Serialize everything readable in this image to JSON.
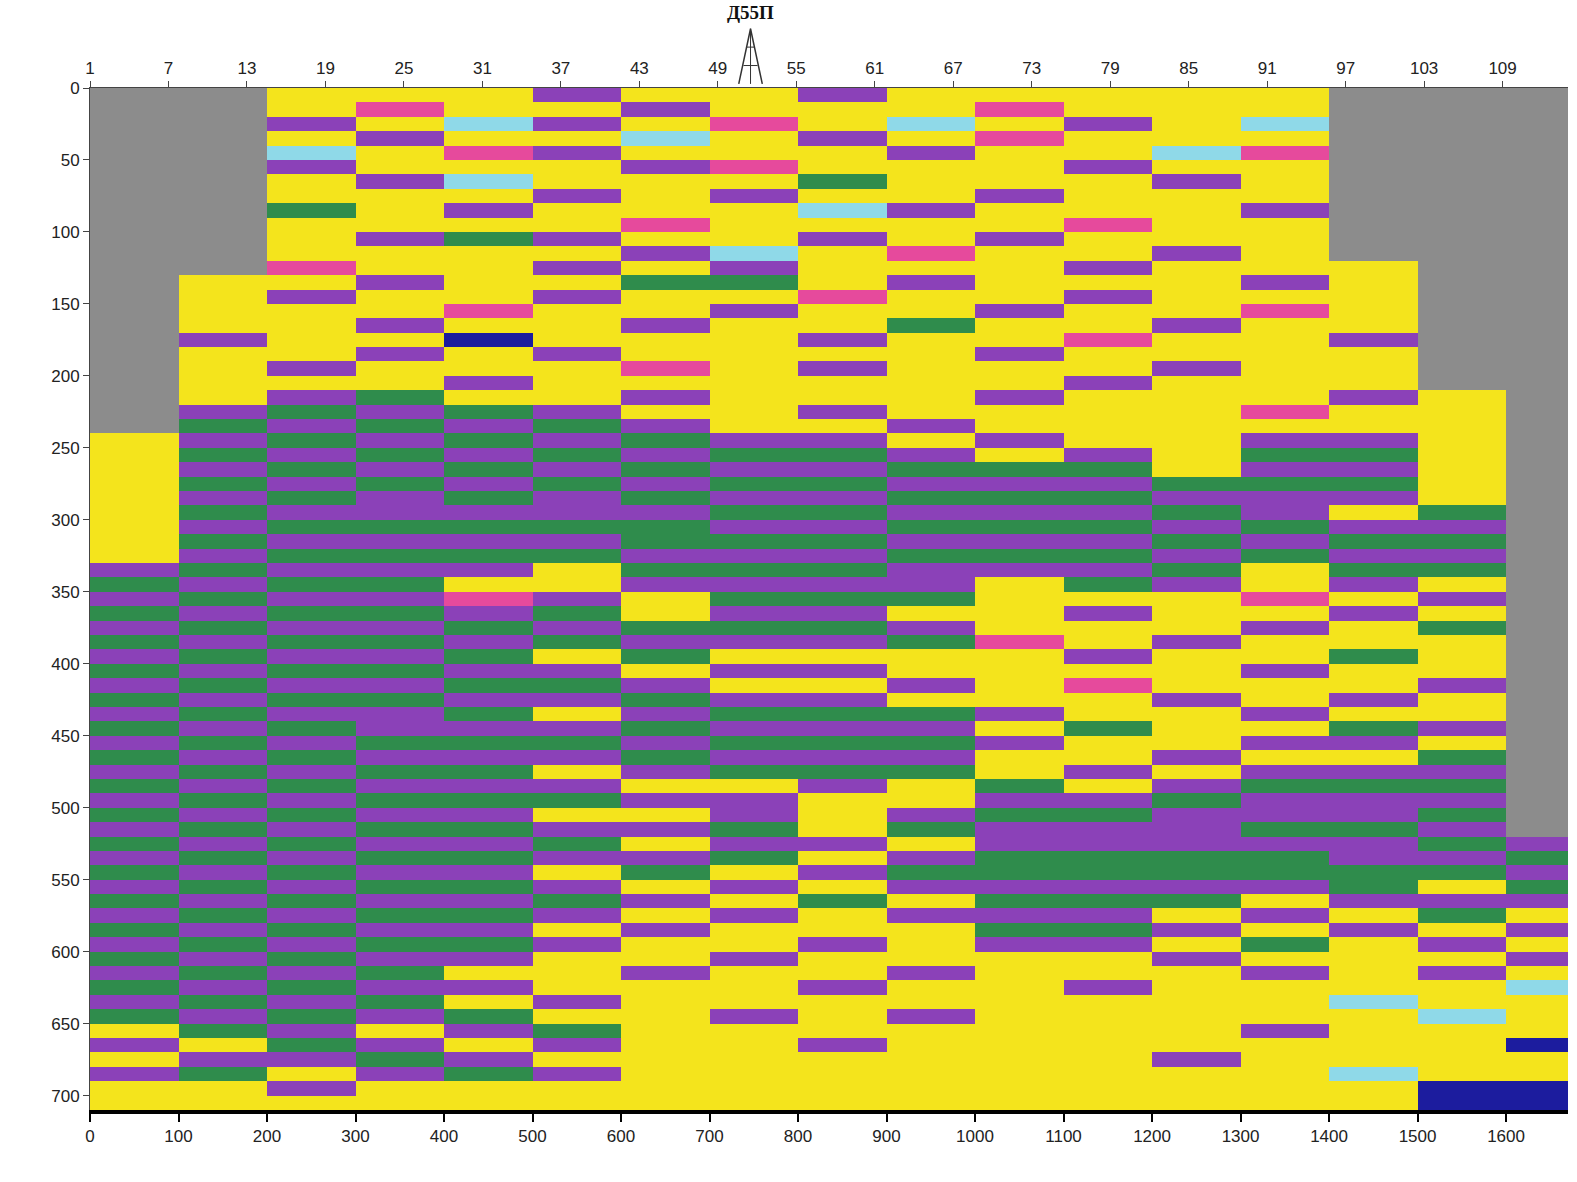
{
  "chart_data": {
    "type": "heatmap",
    "annotations": [
      {
        "text": "Д55П",
        "x": 51.5,
        "axis": "x2"
      }
    ],
    "xlim": [
      0,
      1670
    ],
    "xticks": [
      0,
      100,
      200,
      300,
      400,
      500,
      600,
      700,
      800,
      900,
      1000,
      1100,
      1200,
      1300,
      1400,
      1500,
      1600
    ],
    "x2lim": [
      1,
      114
    ],
    "x2ticks": [
      1,
      7,
      13,
      19,
      25,
      31,
      37,
      43,
      49,
      55,
      61,
      67,
      73,
      79,
      85,
      91,
      97,
      103,
      109
    ],
    "ylim": [
      710,
      0
    ],
    "yticks": [
      0,
      50,
      100,
      150,
      200,
      250,
      300,
      350,
      400,
      450,
      500,
      550,
      600,
      650,
      700
    ],
    "zlim": [
      1,
      6
    ],
    "x": [
      50,
      150,
      250,
      350,
      450,
      550,
      650,
      750,
      850,
      950,
      1050,
      1150,
      1250,
      1350,
      1450,
      1550,
      1650
    ],
    "y": [
      5,
      15,
      25,
      35,
      45,
      55,
      65,
      75,
      85,
      95,
      105,
      115,
      125,
      135,
      145,
      155,
      165,
      175,
      185,
      195,
      205,
      215,
      225,
      235,
      245,
      255,
      265,
      275,
      285,
      295,
      305,
      315,
      325,
      335,
      345,
      355,
      365,
      375,
      385,
      395,
      405,
      415,
      425,
      435,
      445,
      455,
      465,
      475,
      485,
      495,
      505,
      515,
      525,
      535,
      545,
      555,
      565,
      575,
      585,
      595,
      605,
      615,
      625,
      635,
      645,
      655,
      665,
      675,
      685,
      695,
      705
    ],
    "z": [
      [
        null,
        null,
        1,
        1,
        1,
        5,
        1,
        1,
        5,
        1,
        1,
        1,
        1,
        1,
        null,
        null,
        null
      ],
      [
        null,
        null,
        1,
        4,
        1,
        1,
        5,
        1,
        1,
        1,
        4,
        1,
        1,
        1,
        null,
        null,
        null
      ],
      [
        null,
        null,
        5,
        1,
        2,
        5,
        1,
        4,
        1,
        2,
        1,
        5,
        1,
        2,
        null,
        null,
        null
      ],
      [
        null,
        null,
        1,
        5,
        1,
        1,
        2,
        1,
        5,
        1,
        4,
        1,
        1,
        1,
        null,
        null,
        null
      ],
      [
        null,
        null,
        2,
        1,
        4,
        5,
        1,
        1,
        1,
        5,
        1,
        1,
        2,
        4,
        null,
        null,
        null
      ],
      [
        null,
        null,
        5,
        1,
        1,
        1,
        5,
        4,
        1,
        1,
        1,
        5,
        1,
        1,
        null,
        null,
        null
      ],
      [
        null,
        null,
        1,
        5,
        2,
        1,
        1,
        1,
        6,
        1,
        1,
        1,
        5,
        1,
        null,
        null,
        null
      ],
      [
        null,
        null,
        1,
        1,
        1,
        5,
        1,
        5,
        1,
        1,
        5,
        1,
        1,
        1,
        null,
        null,
        null
      ],
      [
        null,
        null,
        6,
        1,
        5,
        1,
        1,
        1,
        2,
        5,
        1,
        1,
        1,
        5,
        null,
        null,
        null
      ],
      [
        null,
        null,
        1,
        1,
        1,
        1,
        4,
        1,
        1,
        1,
        1,
        4,
        1,
        1,
        null,
        null,
        null
      ],
      [
        null,
        null,
        1,
        5,
        6,
        5,
        1,
        1,
        5,
        1,
        5,
        1,
        1,
        1,
        null,
        null,
        null
      ],
      [
        null,
        null,
        1,
        1,
        1,
        1,
        5,
        2,
        1,
        4,
        1,
        1,
        5,
        1,
        null,
        null,
        null
      ],
      [
        null,
        null,
        4,
        1,
        1,
        5,
        1,
        5,
        1,
        1,
        1,
        5,
        1,
        1,
        1,
        null,
        null
      ],
      [
        null,
        1,
        1,
        5,
        1,
        1,
        6,
        6,
        1,
        5,
        1,
        1,
        1,
        5,
        1,
        null,
        null
      ],
      [
        null,
        1,
        5,
        1,
        1,
        5,
        1,
        1,
        4,
        1,
        1,
        5,
        1,
        1,
        1,
        null,
        null
      ],
      [
        null,
        1,
        1,
        1,
        4,
        1,
        1,
        5,
        1,
        1,
        5,
        1,
        1,
        4,
        1,
        null,
        null
      ],
      [
        null,
        1,
        1,
        5,
        1,
        1,
        5,
        1,
        1,
        6,
        1,
        1,
        5,
        1,
        1,
        null,
        null
      ],
      [
        null,
        5,
        1,
        1,
        3,
        1,
        1,
        1,
        5,
        1,
        1,
        4,
        1,
        1,
        5,
        null,
        null
      ],
      [
        null,
        1,
        1,
        5,
        1,
        5,
        1,
        1,
        1,
        1,
        5,
        1,
        1,
        1,
        1,
        null,
        null
      ],
      [
        null,
        1,
        5,
        1,
        1,
        1,
        4,
        1,
        5,
        1,
        1,
        1,
        5,
        1,
        1,
        null,
        null
      ],
      [
        null,
        1,
        1,
        1,
        5,
        1,
        1,
        1,
        1,
        1,
        1,
        5,
        1,
        1,
        1,
        null,
        null
      ],
      [
        null,
        1,
        5,
        6,
        1,
        1,
        5,
        1,
        1,
        1,
        5,
        1,
        1,
        1,
        5,
        1,
        null
      ],
      [
        null,
        5,
        6,
        5,
        6,
        5,
        1,
        1,
        5,
        1,
        1,
        1,
        1,
        4,
        1,
        1,
        null
      ],
      [
        null,
        6,
        5,
        6,
        5,
        6,
        5,
        1,
        1,
        5,
        1,
        1,
        1,
        1,
        1,
        1,
        null
      ],
      [
        1,
        5,
        6,
        5,
        6,
        5,
        6,
        5,
        5,
        1,
        5,
        1,
        1,
        5,
        5,
        1,
        null
      ],
      [
        1,
        6,
        5,
        6,
        5,
        6,
        5,
        6,
        6,
        5,
        1,
        5,
        1,
        6,
        6,
        1,
        null
      ],
      [
        1,
        5,
        6,
        5,
        6,
        5,
        6,
        5,
        5,
        6,
        6,
        6,
        1,
        5,
        5,
        1,
        null
      ],
      [
        1,
        6,
        5,
        6,
        5,
        6,
        5,
        6,
        6,
        5,
        5,
        5,
        6,
        6,
        6,
        1,
        null
      ],
      [
        1,
        5,
        6,
        5,
        6,
        5,
        6,
        5,
        5,
        6,
        6,
        6,
        5,
        5,
        5,
        1,
        null
      ],
      [
        1,
        6,
        5,
        5,
        5,
        5,
        5,
        6,
        6,
        5,
        5,
        5,
        6,
        5,
        1,
        6,
        null
      ],
      [
        1,
        5,
        6,
        6,
        6,
        6,
        6,
        5,
        5,
        6,
        6,
        6,
        5,
        6,
        5,
        5,
        null
      ],
      [
        1,
        6,
        5,
        5,
        5,
        5,
        6,
        6,
        6,
        5,
        5,
        5,
        6,
        5,
        6,
        6,
        null
      ],
      [
        1,
        5,
        6,
        6,
        6,
        6,
        5,
        5,
        5,
        6,
        6,
        6,
        5,
        6,
        5,
        5,
        null
      ],
      [
        5,
        6,
        5,
        5,
        5,
        1,
        6,
        6,
        6,
        5,
        5,
        5,
        6,
        1,
        6,
        6,
        null
      ],
      [
        6,
        5,
        6,
        6,
        1,
        1,
        5,
        5,
        5,
        5,
        1,
        6,
        5,
        1,
        5,
        1,
        null
      ],
      [
        5,
        6,
        5,
        5,
        4,
        5,
        1,
        6,
        6,
        6,
        1,
        1,
        1,
        4,
        1,
        5,
        null
      ],
      [
        6,
        5,
        6,
        6,
        5,
        6,
        1,
        5,
        5,
        1,
        1,
        5,
        1,
        1,
        5,
        1,
        null
      ],
      [
        5,
        6,
        5,
        5,
        6,
        5,
        6,
        6,
        6,
        5,
        1,
        1,
        1,
        5,
        1,
        6,
        null
      ],
      [
        6,
        5,
        6,
        6,
        5,
        6,
        5,
        5,
        5,
        6,
        4,
        1,
        5,
        1,
        1,
        1,
        null
      ],
      [
        5,
        6,
        5,
        5,
        6,
        1,
        6,
        1,
        1,
        1,
        1,
        5,
        1,
        1,
        6,
        1,
        null
      ],
      [
        6,
        5,
        6,
        6,
        5,
        5,
        1,
        5,
        5,
        1,
        1,
        1,
        1,
        5,
        1,
        1,
        null
      ],
      [
        5,
        6,
        5,
        5,
        6,
        6,
        5,
        1,
        1,
        5,
        1,
        4,
        1,
        1,
        1,
        5,
        null
      ],
      [
        6,
        5,
        6,
        6,
        5,
        5,
        6,
        5,
        5,
        1,
        1,
        1,
        5,
        1,
        5,
        1,
        null
      ],
      [
        5,
        6,
        5,
        5,
        6,
        1,
        5,
        6,
        6,
        6,
        5,
        1,
        1,
        5,
        1,
        1,
        null
      ],
      [
        6,
        5,
        6,
        5,
        5,
        5,
        6,
        5,
        5,
        5,
        1,
        6,
        1,
        1,
        6,
        5,
        null
      ],
      [
        5,
        6,
        5,
        6,
        6,
        6,
        5,
        6,
        6,
        6,
        5,
        1,
        1,
        5,
        5,
        1,
        null
      ],
      [
        6,
        5,
        6,
        5,
        5,
        5,
        6,
        5,
        5,
        5,
        1,
        1,
        5,
        1,
        1,
        6,
        null
      ],
      [
        5,
        6,
        5,
        6,
        6,
        1,
        5,
        6,
        6,
        6,
        1,
        5,
        1,
        5,
        5,
        5,
        null
      ],
      [
        6,
        5,
        6,
        5,
        5,
        5,
        1,
        1,
        5,
        1,
        6,
        1,
        5,
        6,
        6,
        6,
        null
      ],
      [
        5,
        6,
        5,
        6,
        6,
        6,
        5,
        5,
        1,
        1,
        5,
        5,
        6,
        5,
        5,
        5,
        null
      ],
      [
        6,
        5,
        6,
        5,
        5,
        1,
        1,
        5,
        1,
        5,
        6,
        6,
        5,
        5,
        5,
        6,
        null
      ],
      [
        5,
        6,
        5,
        6,
        6,
        5,
        5,
        6,
        1,
        6,
        5,
        5,
        5,
        6,
        6,
        5,
        null
      ],
      [
        6,
        5,
        6,
        5,
        5,
        6,
        1,
        5,
        5,
        1,
        5,
        5,
        5,
        5,
        5,
        6,
        5
      ],
      [
        5,
        6,
        5,
        6,
        6,
        5,
        5,
        6,
        1,
        5,
        6,
        6,
        6,
        6,
        5,
        5,
        6
      ],
      [
        6,
        5,
        6,
        5,
        5,
        1,
        6,
        1,
        5,
        6,
        6,
        6,
        6,
        6,
        6,
        6,
        5
      ],
      [
        5,
        6,
        5,
        6,
        6,
        5,
        1,
        5,
        1,
        5,
        5,
        5,
        5,
        5,
        6,
        1,
        6
      ],
      [
        6,
        5,
        6,
        5,
        5,
        6,
        5,
        1,
        6,
        1,
        6,
        6,
        6,
        1,
        5,
        5,
        5
      ],
      [
        5,
        6,
        5,
        6,
        6,
        5,
        1,
        5,
        1,
        5,
        5,
        5,
        1,
        5,
        1,
        6,
        1
      ],
      [
        6,
        5,
        6,
        5,
        5,
        1,
        5,
        1,
        1,
        1,
        6,
        6,
        5,
        1,
        5,
        1,
        5
      ],
      [
        5,
        6,
        5,
        6,
        6,
        5,
        1,
        1,
        5,
        1,
        5,
        5,
        1,
        6,
        1,
        5,
        1
      ],
      [
        6,
        5,
        6,
        5,
        5,
        1,
        1,
        5,
        1,
        1,
        1,
        1,
        5,
        1,
        1,
        1,
        5
      ],
      [
        5,
        6,
        5,
        6,
        1,
        1,
        5,
        1,
        1,
        5,
        1,
        1,
        1,
        5,
        1,
        5,
        1
      ],
      [
        6,
        5,
        6,
        5,
        5,
        1,
        1,
        1,
        5,
        1,
        1,
        5,
        1,
        1,
        1,
        1,
        2
      ],
      [
        5,
        6,
        5,
        6,
        1,
        5,
        1,
        1,
        1,
        1,
        1,
        1,
        1,
        1,
        2,
        1,
        1
      ],
      [
        6,
        5,
        6,
        5,
        6,
        1,
        1,
        5,
        1,
        5,
        1,
        1,
        1,
        1,
        1,
        2,
        1
      ],
      [
        1,
        6,
        5,
        1,
        5,
        6,
        1,
        1,
        1,
        1,
        1,
        1,
        1,
        5,
        1,
        1,
        1
      ],
      [
        5,
        1,
        6,
        5,
        1,
        5,
        1,
        1,
        5,
        1,
        1,
        1,
        1,
        1,
        1,
        1,
        3
      ],
      [
        1,
        5,
        5,
        6,
        5,
        1,
        1,
        1,
        1,
        1,
        1,
        1,
        5,
        1,
        1,
        1,
        1
      ],
      [
        5,
        6,
        1,
        5,
        6,
        5,
        1,
        1,
        1,
        1,
        1,
        1,
        1,
        1,
        2,
        1,
        1
      ],
      [
        1,
        1,
        5,
        1,
        1,
        1,
        1,
        1,
        1,
        1,
        1,
        1,
        1,
        1,
        1,
        3,
        3
      ],
      [
        1,
        1,
        1,
        1,
        1,
        1,
        1,
        1,
        1,
        1,
        1,
        1,
        1,
        1,
        1,
        3,
        3
      ]
    ]
  }
}
